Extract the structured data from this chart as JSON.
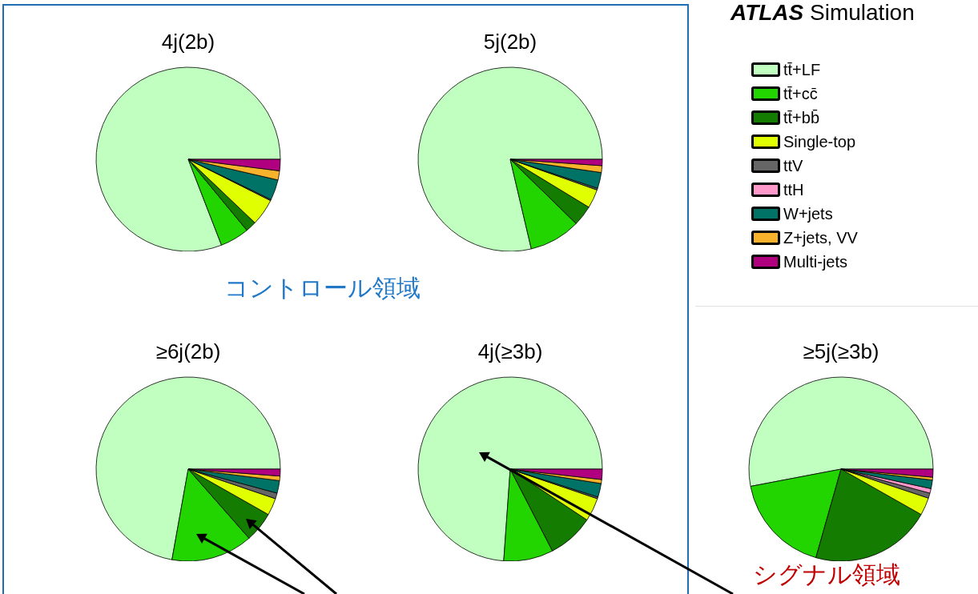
{
  "chart_data": [
    {
      "type": "pie",
      "title": "4j(2b)",
      "legend": "right",
      "annotations": [
        "ATLAS Simulation",
        "コントロール領域",
        "シグナル領域"
      ],
      "categories": [
        "tt̄+LF",
        "tt̄+cc̄",
        "tt̄+bb̄",
        "Single-top",
        "ttV",
        "ttH",
        "W+jets",
        "Z+jets, VV",
        "Multi-jets"
      ],
      "colors": [
        "#c0ffc0",
        "#22d400",
        "#147c00",
        "#e0ff00",
        "#666666",
        "#ff99cc",
        "#007366",
        "#f7b32b",
        "#b0007f"
      ],
      "values": [
        80.8,
        5.1,
        1.9,
        4.7,
        0.2,
        null,
        3.6,
        1.6,
        2.0
      ]
    },
    {
      "type": "pie",
      "title": "5j(2b)",
      "categories": [
        null,
        null,
        null,
        null,
        null,
        null,
        null,
        null,
        null
      ],
      "colors": [
        "#c0ffc0",
        "#22d400",
        "#147c00",
        "#e0ff00",
        "#666666",
        "#ff99cc",
        "#007366",
        "#f7b32b",
        "#b0007f"
      ],
      "values": [
        78.6,
        9.0,
        3.6,
        3.3,
        0.3,
        null,
        2.8,
        1.2,
        1.1
      ]
    },
    {
      "type": "pie",
      "title": "≥6j(2b)",
      "categories": [
        null,
        null,
        null,
        null,
        null,
        null,
        null,
        null,
        null
      ],
      "colors": [
        "#c0ffc0",
        "#22d400",
        "#147c00",
        "#e0ff00",
        "#666666",
        "#ff99cc",
        "#007366",
        "#f7b32b",
        "#b0007f"
      ],
      "values": [
        72.1,
        14.3,
        5.3,
        3.0,
        1.0,
        null,
        2.2,
        0.8,
        1.2
      ]
    },
    {
      "type": "pie",
      "title": "4j(≥3b)",
      "categories": [
        null,
        null,
        null,
        null,
        null,
        null,
        null,
        null,
        null
      ],
      "colors": [
        "#c0ffc0",
        "#22d400",
        "#147c00",
        "#e0ff00",
        "#666666",
        "#ff99cc",
        "#007366",
        "#f7b32b",
        "#b0007f"
      ],
      "values": [
        73.8,
        8.7,
        8.1,
        4.1,
        0.3,
        null,
        2.4,
        0.7,
        1.8
      ]
    },
    {
      "type": "pie",
      "title": "≥5j(≥3b)",
      "categories": [
        null,
        null,
        null,
        null,
        null,
        null,
        null,
        null,
        null
      ],
      "colors": [
        "#c0ffc0",
        "#22d400",
        "#147c00",
        "#e0ff00",
        "#666666",
        "#ff99cc",
        "#007366",
        "#f7b32b",
        "#b0007f"
      ],
      "values": [
        53.0,
        17.6,
        21.2,
        3.1,
        0.9,
        0.8,
        1.5,
        0.5,
        1.4
      ]
    }
  ]
}
